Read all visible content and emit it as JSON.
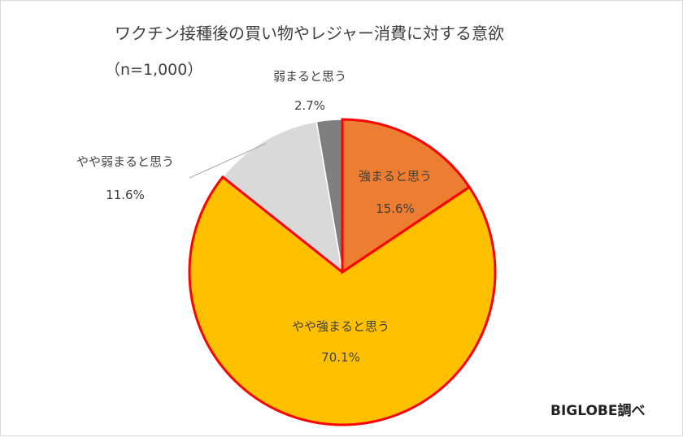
{
  "chart_data": {
    "type": "pie",
    "title": "ワクチン接種後の買い物やレジャー消費に対する意欲",
    "subtitle": "（n=1,000）",
    "slices": [
      {
        "label": "強まると思う",
        "value_label": "15.6%",
        "value": 15.6,
        "color": "#ED7D31",
        "highlight": true
      },
      {
        "label": "やや強まると思う",
        "value_label": "70.1%",
        "value": 70.1,
        "color": "#FFC000",
        "highlight": true
      },
      {
        "label": "やや弱まると思う",
        "value_label": "11.6%",
        "value": 11.6,
        "color": "#D9D9D9",
        "highlight": false
      },
      {
        "label": "弱まると思う",
        "value_label": "2.7%",
        "value": 2.7,
        "color": "#7F7F7F",
        "highlight": false
      }
    ],
    "highlight_color": "#FF0000",
    "credit": "BIGLOBE調べ"
  }
}
